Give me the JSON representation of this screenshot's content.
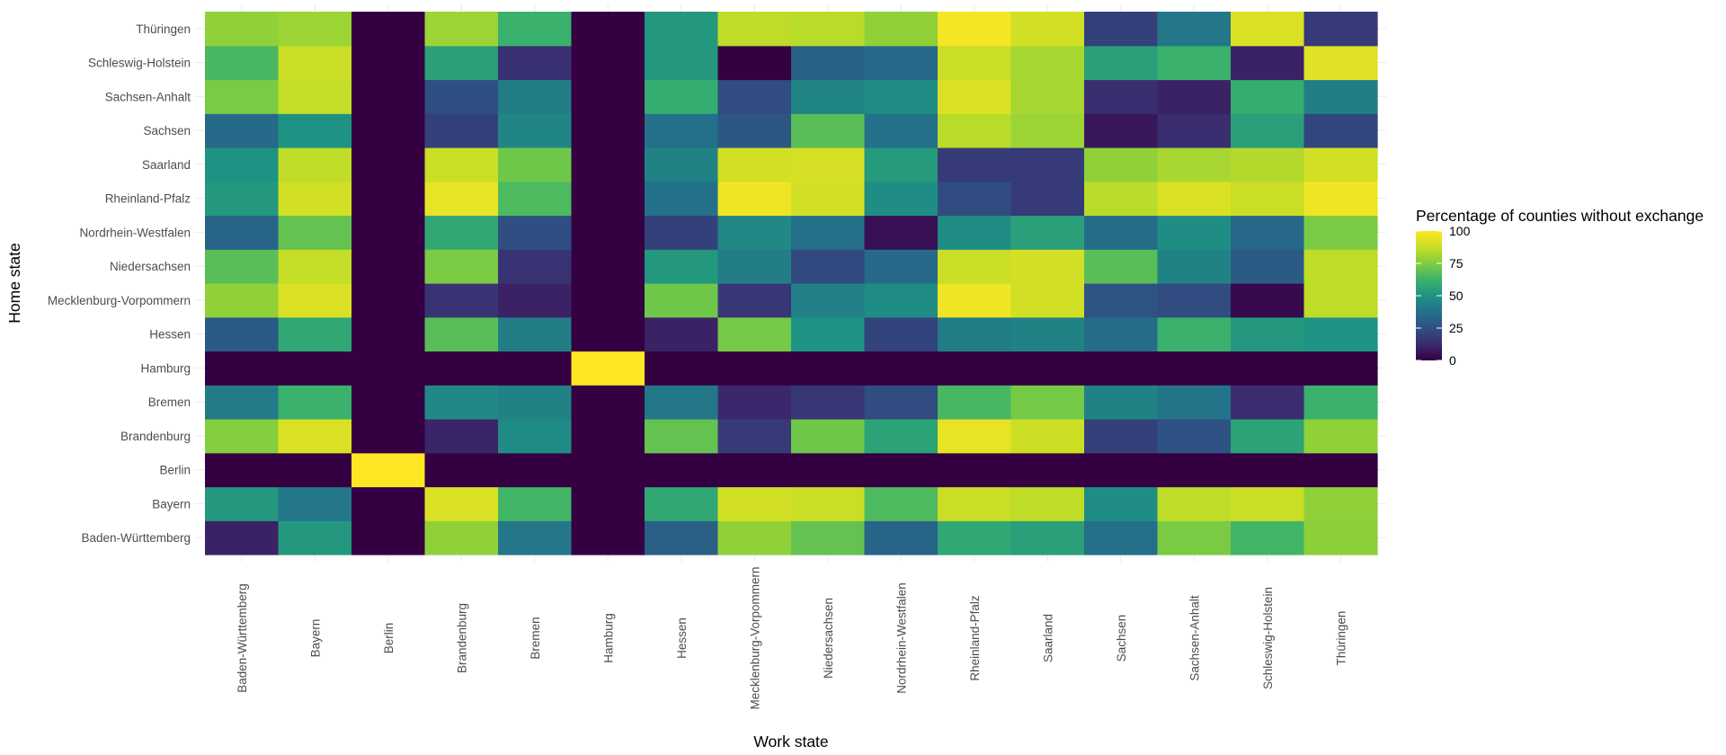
{
  "chart_data": {
    "type": "heatmap",
    "title": "",
    "xlabel": "Work state",
    "ylabel": "Home state",
    "x_categories": [
      "Baden-Württemberg",
      "Bayern",
      "Berlin",
      "Brandenburg",
      "Bremen",
      "Hamburg",
      "Hessen",
      "Mecklenburg-Vorpommern",
      "Niedersachsen",
      "Nordrhein-Westfalen",
      "Rheinland-Pfalz",
      "Saarland",
      "Sachsen",
      "Sachsen-Anhalt",
      "Schleswig-Holstein",
      "Thüringen"
    ],
    "y_categories": [
      "Baden-Württemberg",
      "Bayern",
      "Berlin",
      "Brandenburg",
      "Bremen",
      "Hamburg",
      "Hessen",
      "Mecklenburg-Vorpommern",
      "Niedersachsen",
      "Nordrhein-Westfalen",
      "Rheinland-Pfalz",
      "Saarland",
      "Sachsen",
      "Sachsen-Anhalt",
      "Schleswig-Holstein",
      "Thüringen"
    ],
    "values": [
      [
        10,
        52,
        0,
        78,
        40,
        0,
        31,
        78,
        70,
        33,
        58,
        55,
        37,
        74,
        64,
        77
      ],
      [
        52,
        40,
        0,
        92,
        64,
        0,
        58,
        90,
        88,
        66,
        88,
        86,
        48,
        86,
        88,
        78
      ],
      [
        0,
        0,
        100,
        0,
        0,
        0,
        0,
        0,
        0,
        0,
        0,
        0,
        0,
        0,
        0,
        0
      ],
      [
        76,
        92,
        0,
        11,
        47,
        0,
        70,
        18,
        72,
        56,
        95,
        89,
        20,
        26,
        56,
        78
      ],
      [
        41,
        62,
        0,
        46,
        44,
        0,
        40,
        12,
        17,
        24,
        65,
        73,
        44,
        39,
        13,
        62
      ],
      [
        0,
        0,
        0,
        0,
        0,
        100,
        0,
        0,
        0,
        0,
        0,
        0,
        0,
        0,
        0,
        0
      ],
      [
        29,
        58,
        0,
        68,
        42,
        0,
        10,
        73,
        50,
        21,
        42,
        44,
        36,
        62,
        52,
        50
      ],
      [
        78,
        92,
        0,
        16,
        10,
        0,
        72,
        17,
        43,
        48,
        97,
        90,
        27,
        24,
        3,
        86
      ],
      [
        68,
        87,
        0,
        74,
        16,
        0,
        52,
        42,
        23,
        35,
        88,
        90,
        68,
        44,
        29,
        86
      ],
      [
        33,
        70,
        0,
        58,
        25,
        0,
        20,
        46,
        37,
        5,
        48,
        55,
        36,
        48,
        34,
        74
      ],
      [
        52,
        90,
        0,
        95,
        66,
        0,
        38,
        97,
        90,
        48,
        24,
        18,
        85,
        92,
        88,
        97
      ],
      [
        50,
        86,
        0,
        88,
        72,
        0,
        44,
        90,
        91,
        53,
        18,
        18,
        78,
        82,
        84,
        90
      ],
      [
        35,
        50,
        0,
        20,
        45,
        0,
        37,
        28,
        68,
        38,
        85,
        80,
        7,
        14,
        55,
        22
      ],
      [
        74,
        87,
        0,
        25,
        42,
        0,
        60,
        24,
        45,
        48,
        92,
        82,
        14,
        10,
        60,
        42
      ],
      [
        65,
        88,
        0,
        55,
        15,
        0,
        52,
        0,
        32,
        35,
        88,
        82,
        55,
        62,
        10,
        93
      ],
      [
        78,
        80,
        0,
        80,
        62,
        0,
        52,
        86,
        85,
        78,
        98,
        90,
        20,
        40,
        92,
        18
      ]
    ],
    "value_range": [
      0,
      100
    ],
    "legend": {
      "title": "Percentage of counties without exchange",
      "ticks": [
        0,
        25,
        50,
        75,
        100
      ],
      "tick_labels": [
        "0",
        "25",
        "50",
        "75",
        "100"
      ],
      "placement": "right"
    },
    "colorscale": [
      "#340042",
      "#3b2a6e",
      "#2f4f82",
      "#24708a",
      "#1f9383",
      "#3bb26b",
      "#7fcd3f",
      "#c7de25",
      "#fde725"
    ],
    "grid": true
  }
}
